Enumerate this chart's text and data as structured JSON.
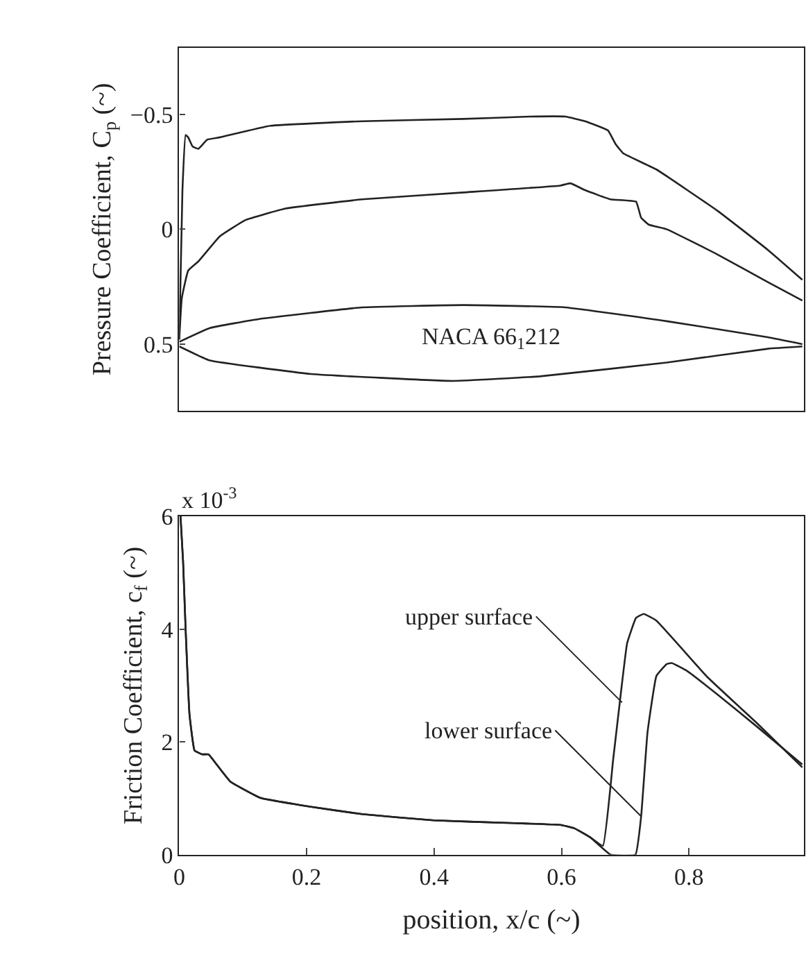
{
  "chart_data": [
    {
      "type": "line",
      "ylabel": "Pressure Coefficient, C$_{p}$ (~)",
      "xlim": [
        0,
        0.98
      ],
      "ylim": [
        0.79,
        -0.79
      ],
      "yticks": [
        {
          "value": -0.5,
          "label": "−0.5"
        },
        0,
        0.5
      ],
      "tick_labels": "y",
      "line_style": "solid",
      "annotations": [
        "NACA 66$_{1}$212"
      ],
      "series": [
        {
          "color": "#222222",
          "x": [
            0,
            0.005,
            0.01,
            0.014,
            0.021,
            0.03,
            0.044,
            0.064,
            0.143,
            0.287,
            0.446,
            0.55,
            0.606,
            0.637,
            0.673,
            0.685,
            0.697,
            0.749,
            0.845,
            0.924,
            0.978
          ],
          "values": [
            0.48,
            -0.17,
            -0.41,
            -0.4,
            -0.36,
            -0.35,
            -0.39,
            -0.4,
            -0.45,
            -0.47,
            -0.48,
            -0.49,
            -0.49,
            -0.47,
            -0.43,
            -0.37,
            -0.33,
            -0.26,
            -0.08,
            0.09,
            0.22
          ]
        },
        {
          "color": "#222222",
          "x": [
            0,
            0.004,
            0.014,
            0.03,
            0.064,
            0.104,
            0.167,
            0.287,
            0.446,
            0.598,
            0.614,
            0.637,
            0.677,
            0.717,
            0.725,
            0.737,
            0.765,
            0.845,
            0.924,
            0.978
          ],
          "values": [
            0.48,
            0.3,
            0.18,
            0.14,
            0.03,
            -0.04,
            -0.09,
            -0.13,
            -0.16,
            -0.19,
            -0.2,
            -0.17,
            -0.13,
            -0.12,
            -0.05,
            -0.02,
            0.0,
            0.11,
            0.23,
            0.31
          ]
        },
        {
          "color": "#222222",
          "x": [
            0,
            0.048,
            0.127,
            0.287,
            0.446,
            0.606,
            0.765,
            0.924,
            0.978
          ],
          "values": [
            0.49,
            0.43,
            0.39,
            0.34,
            0.33,
            0.34,
            0.4,
            0.47,
            0.5
          ]
        },
        {
          "color": "#222222",
          "x": [
            0,
            0.047,
            0.207,
            0.43,
            0.566,
            0.765,
            0.924,
            0.978
          ],
          "values": [
            0.51,
            0.57,
            0.63,
            0.66,
            0.64,
            0.58,
            0.52,
            0.51
          ]
        }
      ]
    },
    {
      "type": "line",
      "ylabel": "Friction Coefficient, c$_{f}$ (~)",
      "xlabel": "position, x/c (~)",
      "xlim": [
        0,
        0.98
      ],
      "xticks": [
        0,
        0.2,
        0.4,
        0.6,
        0.8
      ],
      "ylim": [
        0,
        6
      ],
      "yticks": [
        0,
        2,
        4,
        6
      ],
      "line_style": "solid",
      "annotations": [
        "x 10$^{-3}$",
        {
          "text": "upper surface",
          "x": 0.695,
          "y": 2.7
        },
        {
          "text": "lower surface",
          "x": 0.725,
          "y": 0.68
        }
      ],
      "series": [
        {
          "color": "#222222",
          "x": [
            0.002,
            0.006,
            0.01,
            0.016,
            0.024,
            0.036,
            0.046,
            0.056,
            0.08,
            0.127,
            0.207,
            0.287,
            0.4,
            0.526,
            0.598,
            0.62,
            0.645,
            0.665,
            0.681,
            0.693,
            0.703,
            0.717,
            0.729,
            0.749,
            0.829,
            0.908,
            0.978
          ],
          "values": [
            6.0,
            5.2,
            4.0,
            2.5,
            1.85,
            1.78,
            1.78,
            1.64,
            1.3,
            1.01,
            0.85,
            0.72,
            0.61,
            0.56,
            0.53,
            0.47,
            0.31,
            0.16,
            1.68,
            2.85,
            3.75,
            4.2,
            4.27,
            4.15,
            3.15,
            2.32,
            1.55
          ]
        },
        {
          "color": "#222222",
          "x": [
            0.002,
            0.006,
            0.01,
            0.016,
            0.024,
            0.036,
            0.046,
            0.056,
            0.08,
            0.127,
            0.207,
            0.287,
            0.4,
            0.526,
            0.598,
            0.62,
            0.645,
            0.677,
            0.716,
            0.725,
            0.735,
            0.749,
            0.765,
            0.773,
            0.797,
            0.845,
            0.908,
            0.978
          ],
          "values": [
            6.0,
            5.2,
            4.0,
            2.5,
            1.85,
            1.78,
            1.78,
            1.64,
            1.3,
            1.01,
            0.85,
            0.72,
            0.61,
            0.56,
            0.53,
            0.47,
            0.31,
            0.0,
            0.0,
            0.68,
            2.17,
            3.17,
            3.38,
            3.4,
            3.26,
            2.84,
            2.26,
            1.6
          ]
        }
      ]
    }
  ]
}
